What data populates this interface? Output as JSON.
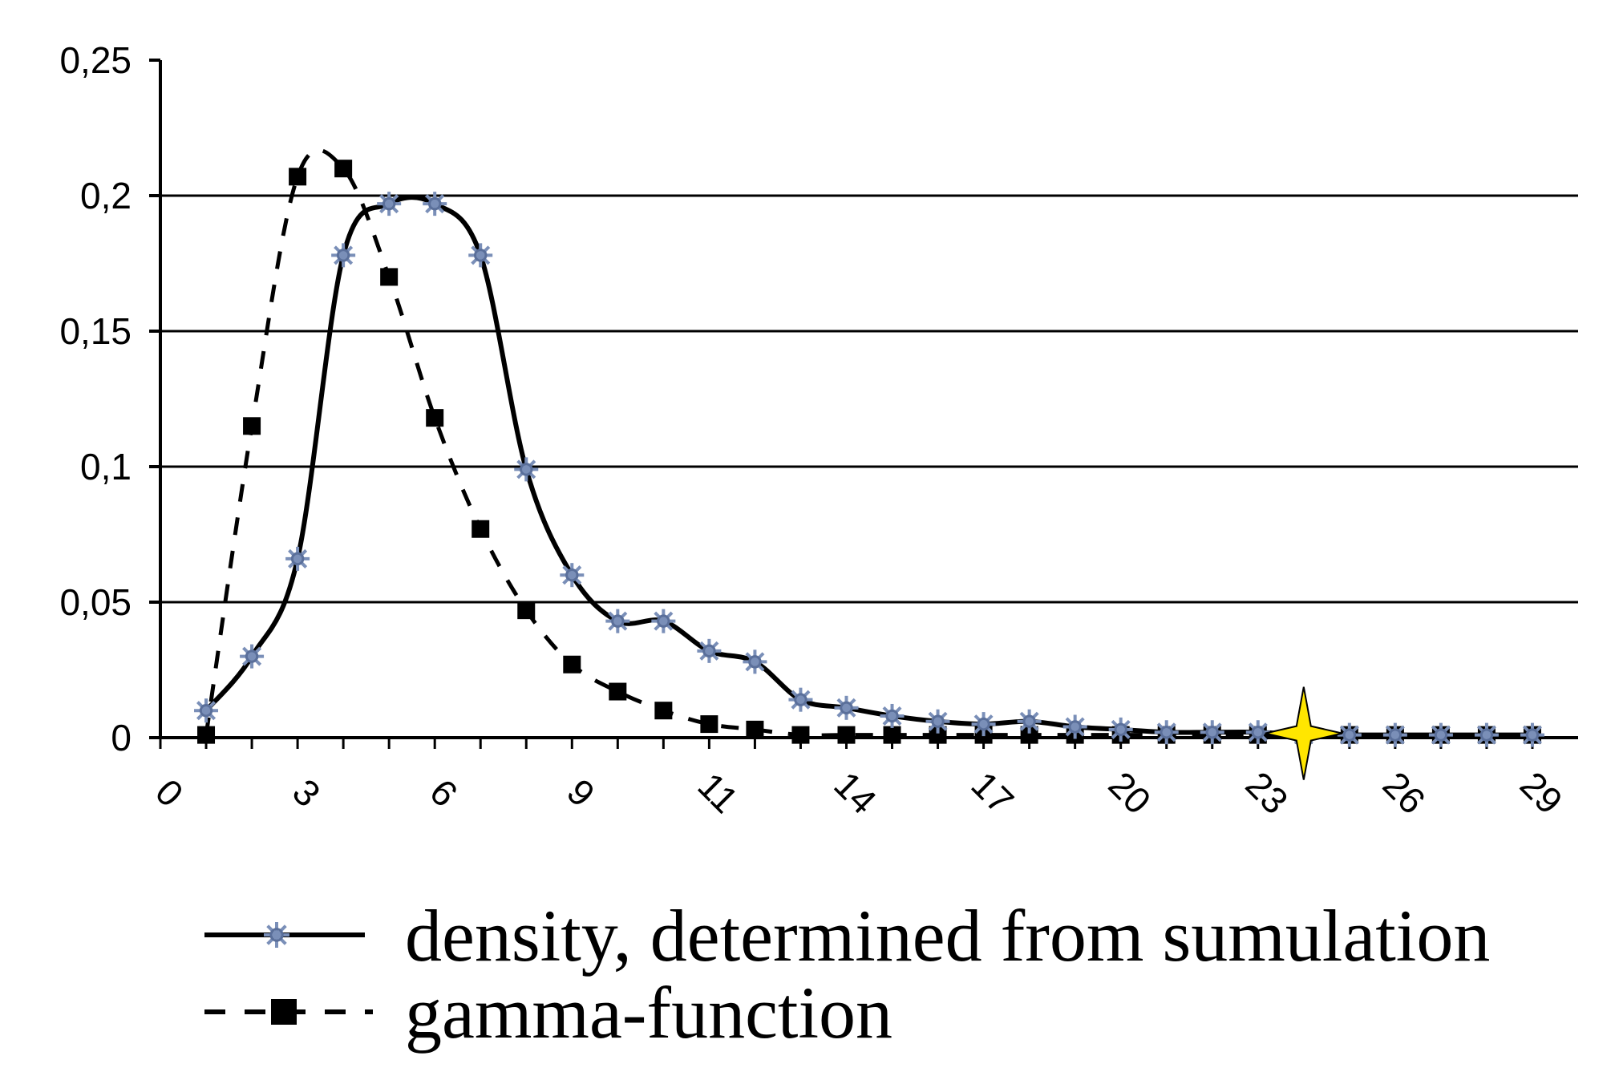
{
  "chart_data": {
    "type": "line",
    "title": "",
    "xlabel": "",
    "ylabel": "",
    "xlim": [
      0,
      31
    ],
    "ylim": [
      0,
      0.25
    ],
    "grid": "horizontal",
    "legend_position": "bottom",
    "y_ticks": [
      "0",
      "0,05",
      "0,1",
      "0,15",
      "0,2",
      "0,25"
    ],
    "x_ticks": [
      "0",
      "3",
      "6",
      "9",
      "11",
      "14",
      "17",
      "20",
      "23",
      "26",
      "29"
    ],
    "series": [
      {
        "name": "density, determined from sumulation",
        "style": "solid-asterisk",
        "x": [
          1,
          2,
          3,
          4,
          5,
          6,
          7,
          8,
          9,
          10,
          11,
          12,
          13,
          14,
          15,
          16,
          17,
          18,
          19,
          20,
          21,
          22,
          23,
          24,
          25,
          26,
          27,
          28,
          29,
          30
        ],
        "y": [
          0.01,
          0.03,
          0.066,
          0.178,
          0.197,
          0.197,
          0.178,
          0.099,
          0.06,
          0.043,
          0.043,
          0.032,
          0.028,
          0.014,
          0.011,
          0.008,
          0.006,
          0.005,
          0.006,
          0.004,
          0.003,
          0.002,
          0.002,
          0.002,
          0.001,
          0.001,
          0.001,
          0.001,
          0.001,
          0.001
        ]
      },
      {
        "name": "gamma-function",
        "style": "dashed-square",
        "x": [
          1,
          2,
          3,
          4,
          5,
          6,
          7,
          8,
          9,
          10,
          11,
          12,
          13,
          14,
          15,
          16,
          17,
          18,
          19,
          20,
          21,
          22,
          23,
          24,
          25,
          26,
          27,
          28,
          29,
          30
        ],
        "y": [
          0.001,
          0.115,
          0.207,
          0.21,
          0.17,
          0.118,
          0.077,
          0.047,
          0.027,
          0.017,
          0.01,
          0.005,
          0.003,
          0.001,
          0.001,
          0.001,
          0.001,
          0.001,
          0.001,
          0.001,
          0.001,
          0.001,
          0.001,
          0.001,
          0.001,
          0.001,
          0.001,
          0.001,
          0.001,
          0.001
        ],
        "x_positions": [
          1,
          3,
          5,
          7,
          9,
          10.5,
          12.5,
          14.5,
          16.5,
          18.5,
          20.5,
          22,
          24,
          26,
          27.5,
          29,
          30.5,
          31.5,
          32.5,
          33.5,
          34.5,
          35.5,
          36.5,
          37.5,
          38.5,
          39.5,
          40.5,
          41.5,
          42.5,
          43.5
        ]
      }
    ],
    "highlight_marker": {
      "x": 25,
      "y": 0.001,
      "color": "#ffe600"
    }
  }
}
